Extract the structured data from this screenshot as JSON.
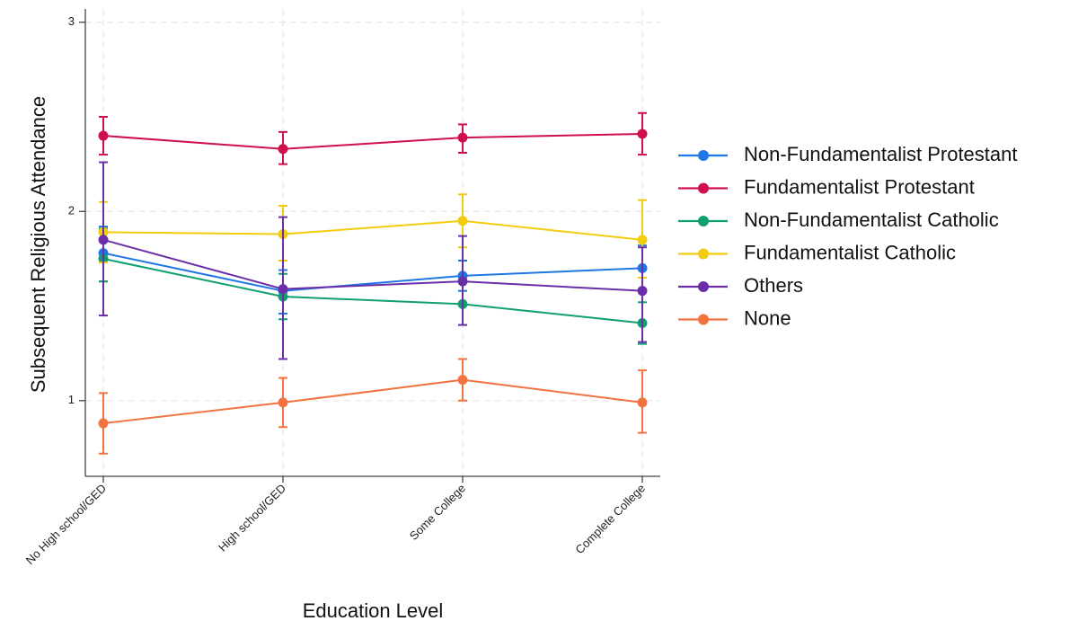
{
  "chart_data": {
    "type": "line",
    "xlabel": "Education Level",
    "ylabel": "Subsequent Religious Attendance",
    "categories": [
      "No High school/GED",
      "High school/GED",
      "Some College",
      "Complete College"
    ],
    "ylim": [
      0.6,
      3.07
    ],
    "yticks": [
      1,
      2,
      3
    ],
    "grid": true,
    "legend_position": "right",
    "error_bars": true,
    "series": [
      {
        "name": "Non-Fundamentalist Protestant",
        "color": "#1f77e6",
        "values": [
          1.78,
          1.58,
          1.66,
          1.7
        ],
        "ci_low": [
          1.63,
          1.46,
          1.58,
          1.59
        ],
        "ci_high": [
          1.92,
          1.69,
          1.74,
          1.82
        ]
      },
      {
        "name": "Fundamentalist Protestant",
        "color": "#d0104c",
        "values": [
          2.4,
          2.33,
          2.39,
          2.41
        ],
        "ci_low": [
          2.3,
          2.25,
          2.31,
          2.3
        ],
        "ci_high": [
          2.5,
          2.42,
          2.46,
          2.52
        ]
      },
      {
        "name": "Non-Fundamentalist Catholic",
        "color": "#10a070",
        "values": [
          1.75,
          1.55,
          1.51,
          1.41
        ],
        "ci_low": [
          1.63,
          1.43,
          1.4,
          1.3
        ],
        "ci_high": [
          1.91,
          1.67,
          1.63,
          1.52
        ]
      },
      {
        "name": "Fundamentalist Catholic",
        "color": "#f2cc0e",
        "values": [
          1.89,
          1.88,
          1.95,
          1.85
        ],
        "ci_low": [
          1.73,
          1.74,
          1.81,
          1.65
        ],
        "ci_high": [
          2.05,
          2.03,
          2.09,
          2.06
        ]
      },
      {
        "name": "Others",
        "color": "#6a2fa8",
        "values": [
          1.85,
          1.59,
          1.63,
          1.58
        ],
        "ci_low": [
          1.45,
          1.22,
          1.4,
          1.31
        ],
        "ci_high": [
          2.26,
          1.97,
          1.87,
          1.81
        ]
      },
      {
        "name": "None",
        "color": "#f27340",
        "values": [
          0.88,
          0.99,
          1.11,
          0.99
        ],
        "ci_low": [
          0.72,
          0.86,
          1.0,
          0.83
        ],
        "ci_high": [
          1.04,
          1.12,
          1.22,
          1.16
        ]
      }
    ]
  }
}
